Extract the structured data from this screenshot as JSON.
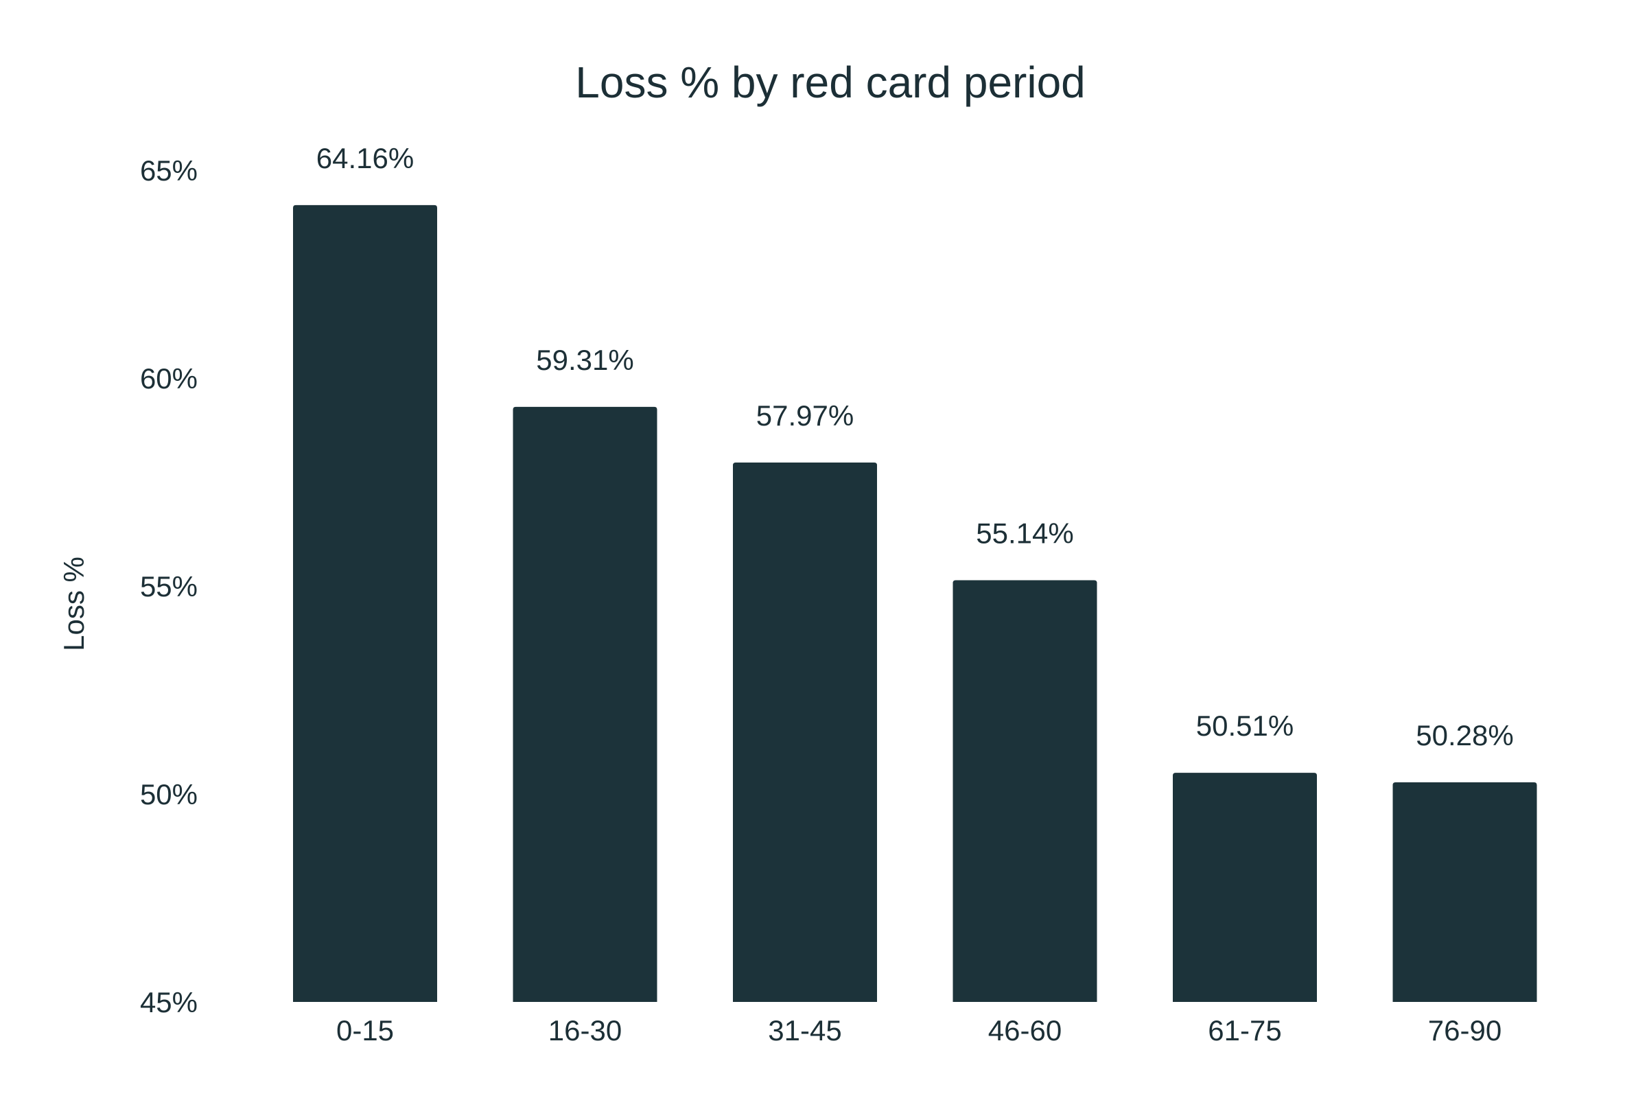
{
  "chart_data": {
    "type": "bar",
    "title": "Loss % by red card period",
    "xlabel": "",
    "ylabel": "Loss %",
    "categories": [
      "0-15",
      "16-30",
      "31-45",
      "46-60",
      "61-75",
      "76-90"
    ],
    "values": [
      64.16,
      59.31,
      57.97,
      55.14,
      50.51,
      50.28
    ],
    "value_labels": [
      "64.16%",
      "59.31%",
      "57.97%",
      "55.14%",
      "50.51%",
      "50.28%"
    ],
    "ylim": [
      45,
      65
    ],
    "yticks": [
      45,
      50,
      55,
      60,
      65
    ],
    "ytick_labels": [
      "45%",
      "50%",
      "55%",
      "60%",
      "65%"
    ],
    "grid": false,
    "legend": "none",
    "bar_color": "#1c333a",
    "text_color": "#1c2f36"
  }
}
